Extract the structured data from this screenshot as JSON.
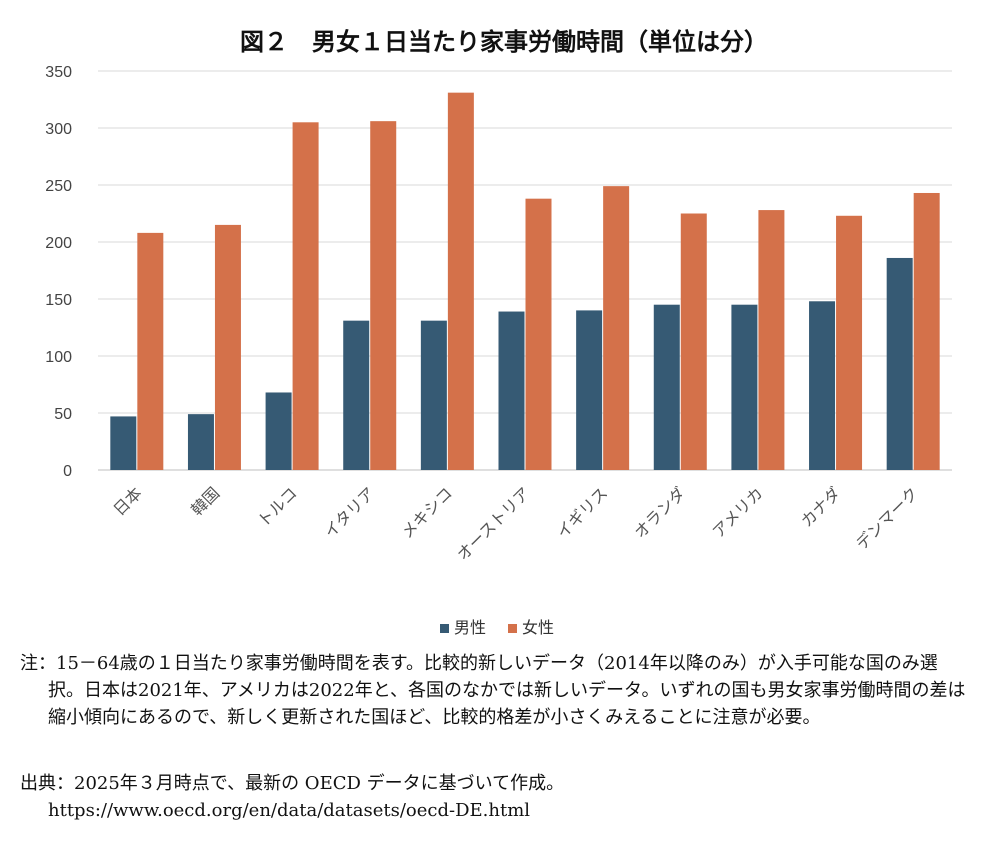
{
  "chart_data": {
    "type": "bar",
    "title": "図２　男女１日当たり家事労働時間（単位は分）",
    "categories": [
      "日本",
      "韓国",
      "トルコ",
      "イタリア",
      "メキシコ",
      "オーストリア",
      "イギリス",
      "オランダ",
      "アメリカ",
      "カナダ",
      "デンマーク"
    ],
    "series": [
      {
        "name": "男性",
        "color": "#365a74",
        "values": [
          47,
          49,
          68,
          131,
          131,
          139,
          140,
          145,
          145,
          148,
          186
        ]
      },
      {
        "name": "女性",
        "color": "#d4714a",
        "values": [
          208,
          215,
          305,
          306,
          331,
          238,
          249,
          225,
          228,
          223,
          243
        ]
      }
    ],
    "ylim": [
      0,
      350
    ],
    "yticks": [
      0,
      50,
      100,
      150,
      200,
      250,
      300,
      350
    ],
    "grid": true,
    "legend": "bottom",
    "xlabel": "",
    "ylabel": ""
  },
  "note": "注：15－64歳の１日当たり家事労働時間を表す。比較的新しいデータ（2014年以降のみ）が入手可能な国のみ選択。日本は2021年、アメリカは2022年と、各国のなかでは新しいデータ。いずれの国も男女家事労働時間の差は縮小傾向にあるので、新しく更新された国ほど、比較的格差が小さくみえることに注意が必要。",
  "source": "出典：2025年３月時点で、最新の OECD データに基づいて作成。https://www.oecd.org/en/data/datasets/oecd-DE.html"
}
